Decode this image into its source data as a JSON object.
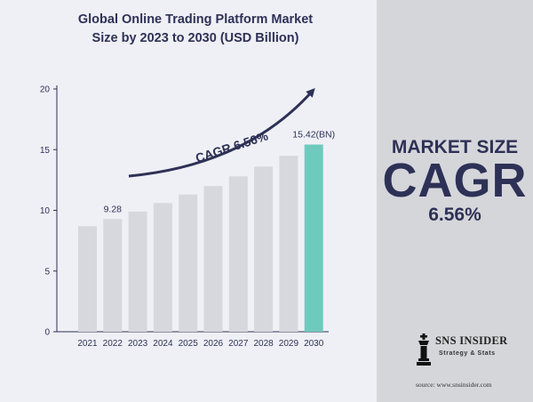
{
  "title_line1": "Global Online Trading Platform Market",
  "title_line2": "Size by 2023 to 2030 (USD Billion)",
  "colors": {
    "bar": "#d6d8dd",
    "highlight_bar": "#6fcabe",
    "text": "#2e3156",
    "arrow": "#2e3156"
  },
  "chart_data": {
    "type": "bar",
    "title": "Global Online Trading Platform Market Size by 2023 to 2030 (USD Billion)",
    "categories": [
      "2021",
      "2022",
      "2023",
      "2024",
      "2025",
      "2026",
      "2027",
      "2028",
      "2029",
      "2030"
    ],
    "values": [
      8.7,
      9.28,
      9.9,
      10.6,
      11.3,
      12.0,
      12.8,
      13.6,
      14.5,
      15.42
    ],
    "highlight_index": 9,
    "ylim": [
      0,
      20
    ],
    "yticks": [
      0,
      5,
      10,
      15,
      20
    ],
    "data_labels": [
      {
        "index": 1,
        "text": "9.28"
      },
      {
        "index": 9,
        "text": "15.42(BN)"
      }
    ],
    "annotation": "CAGR 6.56%",
    "grid": false,
    "xlabel": "",
    "ylabel": ""
  },
  "right_panel": {
    "market_size_label": "MARKET SIZE",
    "cagr_label": "CAGR",
    "cagr_value": "6.56%"
  },
  "logo": {
    "name": "SNS INSIDER",
    "tagline": "Strategy & Stats",
    "icon": "chess-king-icon"
  },
  "source": "source: www.snsinsider.com"
}
